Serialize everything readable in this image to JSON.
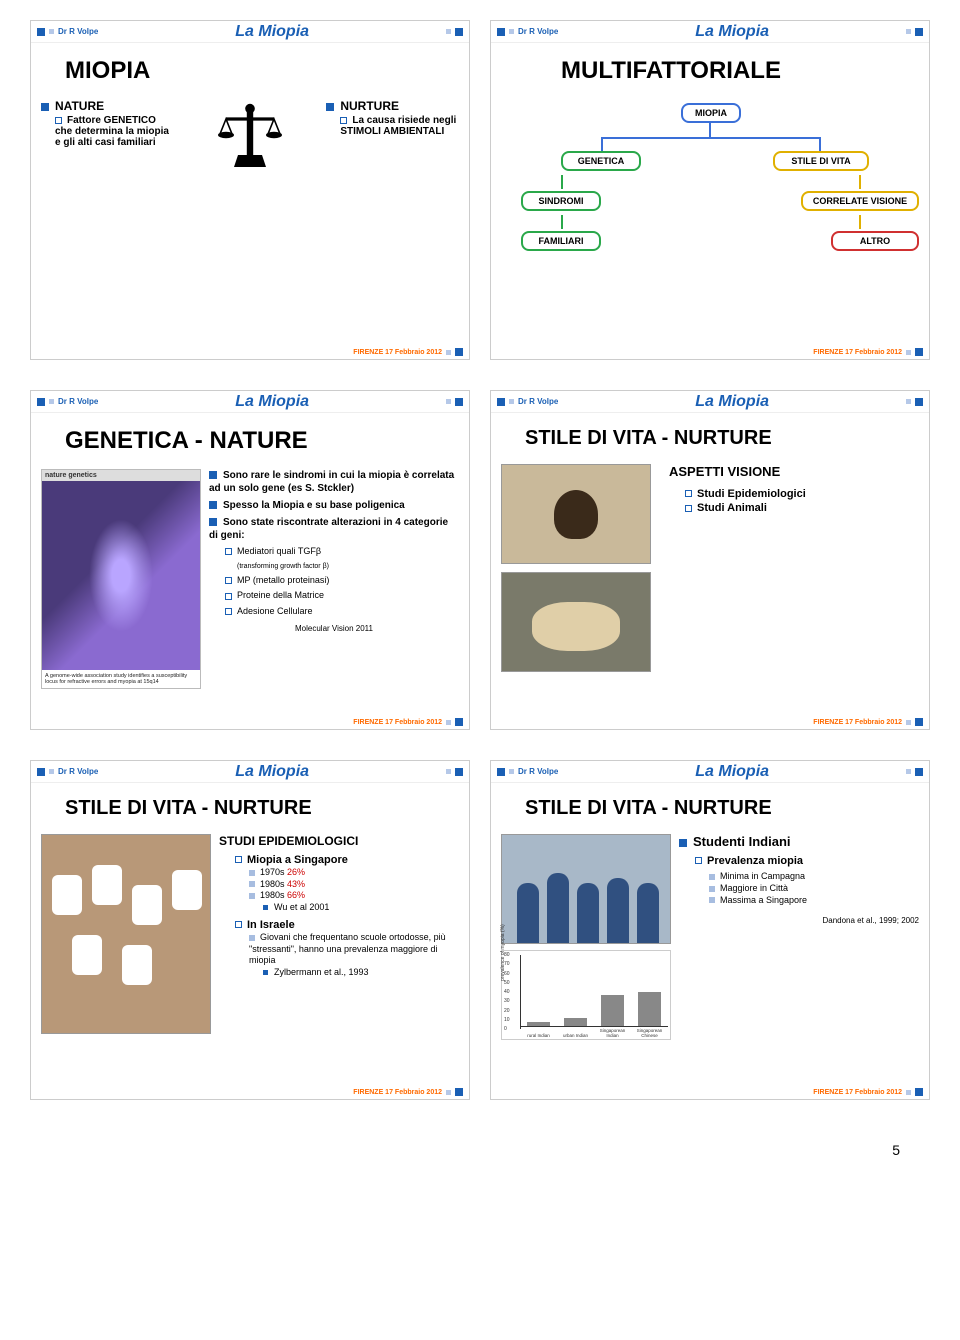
{
  "meta": {
    "author": "Dr R Volpe",
    "brand": "La Miopia",
    "footer": "FIRENZE 17 Febbraio 2012",
    "page_number": "5"
  },
  "slide1": {
    "title": "MIOPIA",
    "nature_label": "NATURE",
    "nature_sub": "Fattore GENETICO che determina la miopia e gli alti casi familiari",
    "nurture_label": "NURTURE",
    "nurture_sub": "La causa risiede negli STIMOLI AMBIENTALI"
  },
  "slide2": {
    "title": "MULTIFATTORIALE",
    "boxes": {
      "miopia": "MIOPIA",
      "genetica": "GENETICA",
      "stile": "STILE DI VITA",
      "sindromi": "SINDROMI",
      "correlate": "CORRELATE VISIONE",
      "familiari": "FAMILIARI",
      "altro": "ALTRO"
    }
  },
  "slide3": {
    "title": "GENETICA - NATURE",
    "journal_head": "nature genetics",
    "caption": "A genome-wide association study identifies a susceptibility locus for refractive errors and myopia at 15q14",
    "bullets": [
      "Sono rare le sindromi in cui la miopia è correlata ad un solo gene (es S. Stckler)",
      "Spesso la Miopia e su base poligenica",
      "Sono state riscontrate alterazioni in 4 categorie di geni:"
    ],
    "sub_bullets": [
      "Mediatori quali TGFβ",
      "(transforming growth factor β)",
      "MP  (metallo proteinasi)",
      "Proteine della Matrice",
      "Adesione Cellulare"
    ],
    "ref": "Molecular Vision 2011"
  },
  "slide4": {
    "title": "STILE DI VITA - NURTURE",
    "head": "ASPETTI VISIONE",
    "items": [
      "Studi Epidemiologici",
      "Studi Animali"
    ]
  },
  "slide5": {
    "title": "STILE DI VITA - NURTURE",
    "head": "STUDI EPIDEMIOLOGICI",
    "singapore_head": "Miopia a Singapore",
    "singapore": [
      {
        "decade": "1970s",
        "pct": "26%"
      },
      {
        "decade": "1980s",
        "pct": "43%"
      },
      {
        "decade": "1980s",
        "pct": "66%"
      }
    ],
    "singapore_ref": "Wu et al 2001",
    "israele_head": "In Israele",
    "israele_txt": "Giovani che frequentano scuole ortodosse, più \"stressanti\", hanno una prevalenza maggiore di miopia",
    "israele_ref": "Zylbermann et al., 1993"
  },
  "slide6": {
    "title": "STILE DI VITA - NURTURE",
    "head": "Studenti Indiani",
    "subhead": "Prevalenza miopia",
    "items": [
      "Minima in Campagna",
      "Maggiore in Città",
      "Massima a Singapore"
    ],
    "ref": "Dandona et al., 1999; 2002",
    "chart": {
      "ylabel": "prevalence of myopia (%)",
      "ymax": 80,
      "ystep": 10,
      "categories": [
        "rural Indian",
        "urban Indian",
        "Singaporean Indian",
        "Singaporean Chinese"
      ],
      "values": [
        5,
        10,
        35,
        38
      ],
      "bar_color": "#888888",
      "background": "#ffffff"
    }
  }
}
